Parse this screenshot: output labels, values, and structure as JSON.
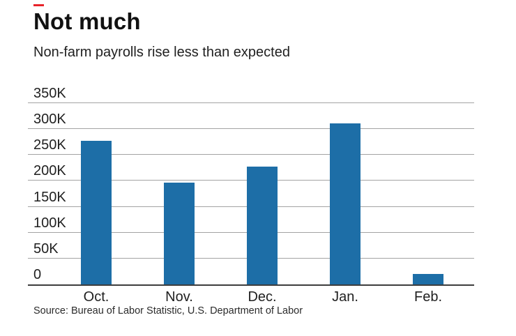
{
  "accent_color": "#e8232a",
  "bar_color": "#1d6ea7",
  "gridline_color": "#a3a3a3",
  "baseline_color": "#3d3d3d",
  "header": {
    "title": "Not much",
    "subtitle": "Non-farm payrolls rise less than expected"
  },
  "chart_data": {
    "type": "bar",
    "categories": [
      "Oct.",
      "Nov.",
      "Dec.",
      "Jan.",
      "Feb."
    ],
    "values": [
      277,
      196,
      227,
      311,
      20
    ],
    "unit": "K (thousands of jobs)",
    "title": "Not much",
    "subtitle": "Non-farm payrolls rise less than expected",
    "xlabel": "",
    "ylabel": "",
    "ylim": [
      0,
      350
    ],
    "ytick_step": 50,
    "ytick_labels": [
      "0",
      "50K",
      "100K",
      "150K",
      "200K",
      "250K",
      "300K",
      "350K"
    ],
    "grid": true,
    "legend": false,
    "bar_color": "#1d6ea7"
  },
  "source": {
    "label": "Source: Bureau of Labor Statistic, U.S. Department of Labor"
  }
}
